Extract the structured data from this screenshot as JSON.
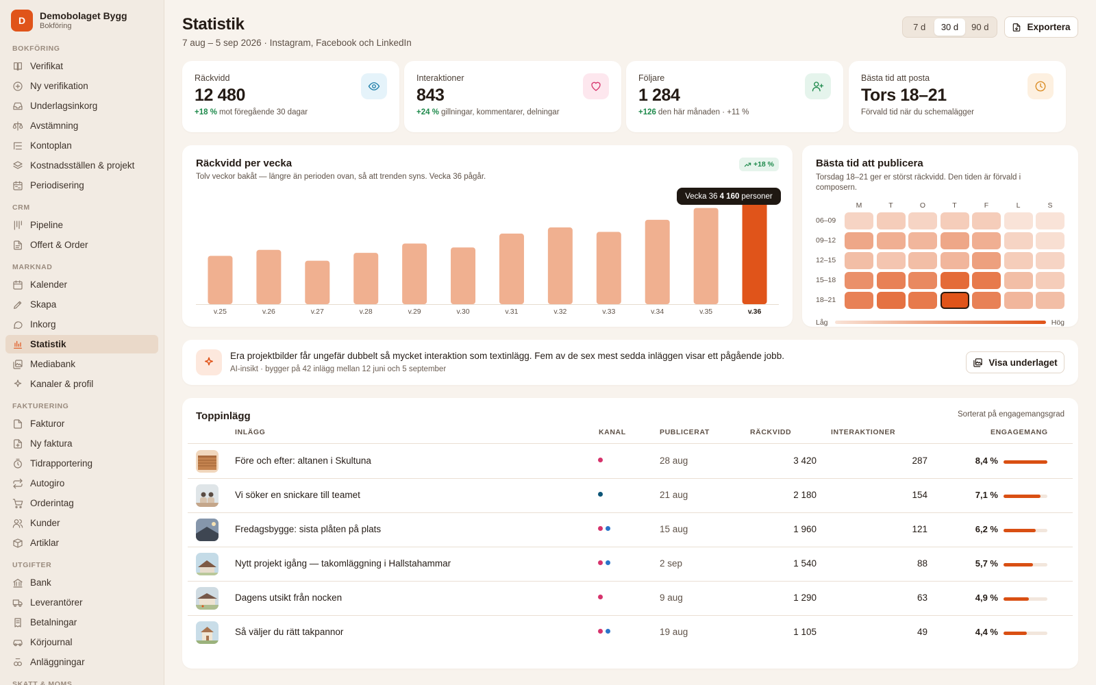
{
  "brand": {
    "initial": "D",
    "name": "Demobolaget Bygg",
    "subtitle": "Bokföring"
  },
  "sidebar": {
    "sections": [
      {
        "title": "BOKFÖRING",
        "items": [
          {
            "label": "Verifikat",
            "icon": "book-icon"
          },
          {
            "label": "Ny verifikation",
            "icon": "plus-circle-icon"
          },
          {
            "label": "Underlagsinkorg",
            "icon": "inbox-icon"
          },
          {
            "label": "Avstämning",
            "icon": "scale-icon"
          },
          {
            "label": "Kontoplan",
            "icon": "list-tree-icon"
          },
          {
            "label": "Kostnadsställen & projekt",
            "icon": "layers-icon"
          },
          {
            "label": "Periodisering",
            "icon": "calendar-range-icon"
          }
        ]
      },
      {
        "title": "CRM",
        "items": [
          {
            "label": "Pipeline",
            "icon": "pipeline-icon"
          },
          {
            "label": "Offert & Order",
            "icon": "file-text-icon"
          }
        ]
      },
      {
        "title": "MARKNAD",
        "items": [
          {
            "label": "Kalender",
            "icon": "calendar-icon"
          },
          {
            "label": "Skapa",
            "icon": "pen-icon"
          },
          {
            "label": "Inkorg",
            "icon": "message-circle-icon"
          },
          {
            "label": "Statistik",
            "icon": "bar-chart-icon",
            "active": true
          },
          {
            "label": "Mediabank",
            "icon": "images-icon"
          },
          {
            "label": "Kanaler & profil",
            "icon": "sparkle-icon"
          }
        ]
      },
      {
        "title": "FAKTURERING",
        "items": [
          {
            "label": "Fakturor",
            "icon": "file-icon"
          },
          {
            "label": "Ny faktura",
            "icon": "file-plus-icon"
          },
          {
            "label": "Tidrapportering",
            "icon": "timer-icon"
          },
          {
            "label": "Autogiro",
            "icon": "repeat-icon"
          },
          {
            "label": "Orderintag",
            "icon": "cart-icon"
          },
          {
            "label": "Kunder",
            "icon": "users-icon"
          },
          {
            "label": "Artiklar",
            "icon": "package-icon"
          }
        ]
      },
      {
        "title": "UTGIFTER",
        "items": [
          {
            "label": "Bank",
            "icon": "bank-icon"
          },
          {
            "label": "Leverantörer",
            "icon": "truck-icon"
          },
          {
            "label": "Betalningar",
            "icon": "receipt-icon"
          },
          {
            "label": "Körjournal",
            "icon": "car-icon"
          },
          {
            "label": "Anläggningar",
            "icon": "cog-stack-icon"
          }
        ]
      },
      {
        "title": "SKATT & MOMS",
        "items": []
      }
    ]
  },
  "header": {
    "title": "Statistik",
    "subtitle": "7 aug – 5 sep 2026 · Instagram, Facebook och LinkedIn",
    "ranges": [
      "7 d",
      "30 d",
      "90 d"
    ],
    "active_range": "30 d",
    "export_label": "Exportera"
  },
  "kpis": [
    {
      "label": "Räckvidd",
      "value": "12 480",
      "delta": "+18 %",
      "note": "mot föregående 30 dagar",
      "icon": "eye-icon",
      "icon_bg": "#e5f3fa",
      "icon_color": "#1f7ea8"
    },
    {
      "label": "Interaktioner",
      "value": "843",
      "delta": "+24 %",
      "note": "gillningar, kommentarer, delningar",
      "icon": "heart-icon",
      "icon_bg": "#fde7ee",
      "icon_color": "#d6336c"
    },
    {
      "label": "Följare",
      "value": "1 284",
      "delta": "+126",
      "note": "den här månaden · +11 %",
      "icon": "user-plus-icon",
      "icon_bg": "#e5f4ec",
      "icon_color": "#1f8a4c"
    },
    {
      "label": "Bästa tid att posta",
      "value": "Tors 18–21",
      "delta": "",
      "note": "Förvald tid när du schemalägger",
      "icon": "clock-icon",
      "icon_bg": "#fdf0e0",
      "icon_color": "#d98a1f"
    }
  ],
  "reach_chart": {
    "title": "Räckvidd per vecka",
    "description": "Tolv veckor bakåt — längre än perioden ovan, så att trenden syns. Vecka 36 pågår.",
    "trend_badge": "+18 %",
    "tooltip": {
      "prefix": "Vecka 36",
      "value": "4 160",
      "suffix": "personer"
    }
  },
  "chart_data": {
    "type": "bar",
    "categories": [
      "v.25",
      "v.26",
      "v.27",
      "v.28",
      "v.29",
      "v.30",
      "v.31",
      "v.32",
      "v.33",
      "v.34",
      "v.35",
      "v.36"
    ],
    "values": [
      1960,
      2200,
      1760,
      2080,
      2460,
      2300,
      2860,
      3110,
      2930,
      3420,
      3900,
      4160
    ],
    "highlight_index": 11,
    "bar_color": "#f0b090",
    "highlight_color": "#e0541a",
    "ylim": [
      0,
      4500
    ],
    "grid": false
  },
  "heatmap": {
    "title": "Bästa tid att publicera",
    "description": "Torsdag 18–21 ger er störst räckvidd. Den tiden är förvald i composern.",
    "days": [
      "M",
      "T",
      "O",
      "T",
      "F",
      "L",
      "S"
    ],
    "slots": [
      "06–09",
      "09–12",
      "12–15",
      "15–18",
      "18–21"
    ],
    "intensity": [
      [
        0.15,
        0.2,
        0.15,
        0.2,
        0.2,
        0.05,
        0.05
      ],
      [
        0.45,
        0.4,
        0.35,
        0.45,
        0.4,
        0.15,
        0.08
      ],
      [
        0.3,
        0.25,
        0.3,
        0.35,
        0.5,
        0.2,
        0.15
      ],
      [
        0.6,
        0.7,
        0.65,
        0.85,
        0.75,
        0.3,
        0.2
      ],
      [
        0.7,
        0.8,
        0.75,
        1.0,
        0.7,
        0.35,
        0.3
      ]
    ],
    "best": {
      "row": 4,
      "col": 3
    },
    "legend_low": "Låg",
    "legend_high": "Hög"
  },
  "insight": {
    "text": "Era projektbilder får ungefär dubbelt så mycket interaktion som textinlägg. Fem av de sex mest sedda inläggen visar ett pågående jobb.",
    "sub": "AI-insikt · bygger på 42 inlägg mellan 12 juni och 5 september",
    "button": "Visa underlaget"
  },
  "top_posts": {
    "title": "Toppinlägg",
    "sort_label": "Sorterat på engagemangsgrad",
    "columns": [
      "INLÄGG",
      "KANAL",
      "PUBLICERAT",
      "RÄCKVIDD",
      "INTERAKTIONER",
      "ENGAGEMANG"
    ],
    "channel_colors": {
      "instagram": "#d6336c",
      "facebook": "#2a74c9",
      "linkedin": "#0d5577"
    },
    "rows": [
      {
        "title": "Före och efter: altanen i Skultuna",
        "channels": [
          "instagram"
        ],
        "date": "28 aug",
        "reach": "3 420",
        "interactions": "287",
        "engagement": "8,4 %",
        "eng_value": 8.4,
        "thumb": "deck"
      },
      {
        "title": "Vi söker en snickare till teamet",
        "channels": [
          "linkedin"
        ],
        "date": "21 aug",
        "reach": "2 180",
        "interactions": "154",
        "engagement": "7,1 %",
        "eng_value": 7.1,
        "thumb": "team"
      },
      {
        "title": "Fredagsbygge: sista plåten på plats",
        "channels": [
          "instagram",
          "facebook"
        ],
        "date": "15 aug",
        "reach": "1 960",
        "interactions": "121",
        "engagement": "6,2 %",
        "eng_value": 6.2,
        "thumb": "roof-dusk"
      },
      {
        "title": "Nytt projekt igång — takomläggning i Hallstahammar",
        "channels": [
          "instagram",
          "facebook"
        ],
        "date": "2 sep",
        "reach": "1 540",
        "interactions": "88",
        "engagement": "5,7 %",
        "eng_value": 5.7,
        "thumb": "house"
      },
      {
        "title": "Dagens utsikt från nocken",
        "channels": [
          "instagram"
        ],
        "date": "9 aug",
        "reach": "1 290",
        "interactions": "63",
        "engagement": "4,9 %",
        "eng_value": 4.9,
        "thumb": "view"
      },
      {
        "title": "Så väljer du rätt takpannor",
        "channels": [
          "instagram",
          "facebook"
        ],
        "date": "19 aug",
        "reach": "1 105",
        "interactions": "49",
        "engagement": "4,4 %",
        "eng_value": 4.4,
        "thumb": "cottage"
      }
    ],
    "eng_max": 8.4
  }
}
